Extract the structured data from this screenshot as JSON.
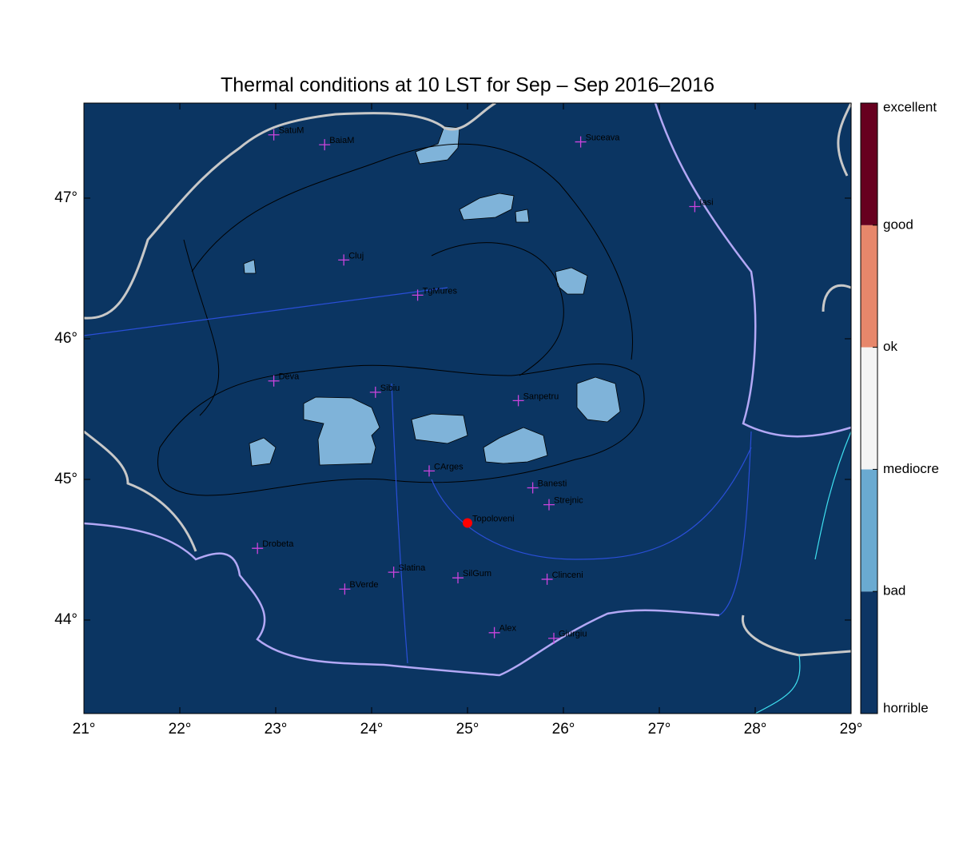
{
  "map": {
    "title": "Thermal conditions at 10 LST for Sep – Sep  2016–2016",
    "xlim": [
      21,
      29
    ],
    "ylim": [
      43.335,
      47.676
    ],
    "xticks": [
      {
        "value": 21,
        "label": "21°"
      },
      {
        "value": 22,
        "label": "22°"
      },
      {
        "value": 23,
        "label": "23°"
      },
      {
        "value": 24,
        "label": "24°"
      },
      {
        "value": 25,
        "label": "25°"
      },
      {
        "value": 26,
        "label": "26°"
      },
      {
        "value": 27,
        "label": "27°"
      },
      {
        "value": 28,
        "label": "28°"
      },
      {
        "value": 29,
        "label": "29°"
      }
    ],
    "yticks": [
      {
        "value": 44,
        "label": "44°"
      },
      {
        "value": 45,
        "label": "45°"
      },
      {
        "value": 46,
        "label": "46°"
      },
      {
        "value": 47,
        "label": "47°"
      }
    ],
    "background": "#0b3562",
    "marker_color": "#cc44dd",
    "cities": [
      {
        "name": "SatuM",
        "lon": 22.98,
        "lat": 47.45
      },
      {
        "name": "BaiaM",
        "lon": 23.51,
        "lat": 47.38
      },
      {
        "name": "Suceava",
        "lon": 26.18,
        "lat": 47.4
      },
      {
        "name": "Iasi",
        "lon": 27.37,
        "lat": 46.94
      },
      {
        "name": "Cluj",
        "lon": 23.71,
        "lat": 46.56
      },
      {
        "name": "TgMures",
        "lon": 24.48,
        "lat": 46.31
      },
      {
        "name": "Deva",
        "lon": 22.98,
        "lat": 45.7
      },
      {
        "name": "Sibiu",
        "lon": 24.04,
        "lat": 45.62
      },
      {
        "name": "Sanpetru",
        "lon": 25.53,
        "lat": 45.56
      },
      {
        "name": "CArges",
        "lon": 24.6,
        "lat": 45.06
      },
      {
        "name": "Banesti",
        "lon": 25.68,
        "lat": 44.94
      },
      {
        "name": "Strejnic",
        "lon": 25.85,
        "lat": 44.82
      },
      {
        "name": "Topoloveni",
        "lon": 25.0,
        "lat": 44.69,
        "marker": "dot",
        "color": "#ff0000"
      },
      {
        "name": "Drobeta",
        "lon": 22.81,
        "lat": 44.51
      },
      {
        "name": "Slatina",
        "lon": 24.23,
        "lat": 44.34
      },
      {
        "name": "SilGum",
        "lon": 24.9,
        "lat": 44.3
      },
      {
        "name": "Clinceni",
        "lon": 25.83,
        "lat": 44.29
      },
      {
        "name": "BVerde",
        "lon": 23.72,
        "lat": 44.22
      },
      {
        "name": "Alex",
        "lon": 25.28,
        "lat": 43.91
      },
      {
        "name": "Giurgiu",
        "lon": 25.9,
        "lat": 43.87
      }
    ],
    "colorbar": {
      "labels": [
        "horrible",
        "bad",
        "mediocre",
        "ok",
        "good",
        "excellent"
      ],
      "colors": [
        "#0d3564",
        "#6aaad1",
        "#f4f4f4",
        "#e7876b",
        "#67001f"
      ]
    }
  }
}
